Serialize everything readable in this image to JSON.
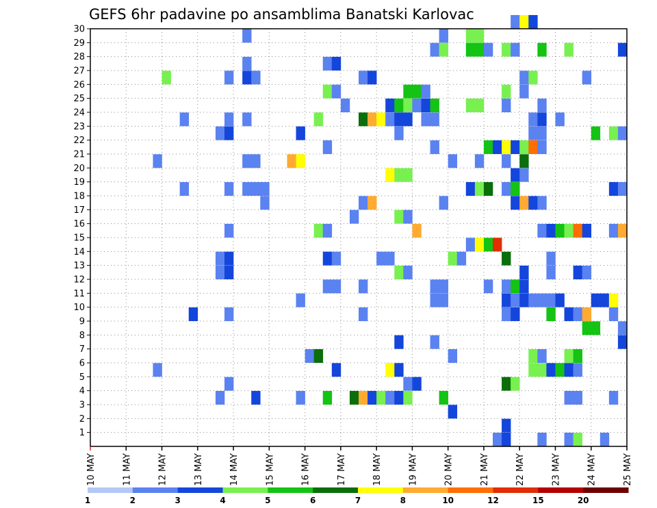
{
  "chart_data": {
    "type": "heatmap",
    "title": "GEFS 6hr padavine po ansamblima Banatski Karlovac",
    "x_tick_labels": [
      "10 MAY",
      "11 MAY",
      "12 MAY",
      "13 MAY",
      "14 MAY",
      "15 MAY",
      "16 MAY",
      "17 MAY",
      "18 MAY",
      "19 MAY",
      "20 MAY",
      "21 MAY",
      "22 MAY",
      "23 MAY",
      "24 MAY",
      "25 MAY"
    ],
    "y_tick_labels": [
      "1",
      "2",
      "3",
      "4",
      "5",
      "6",
      "7",
      "8",
      "9",
      "10",
      "11",
      "12",
      "13",
      "14",
      "15",
      "16",
      "17",
      "18",
      "19",
      "20",
      "21",
      "22",
      "23",
      "24",
      "25",
      "26",
      "27",
      "28",
      "29",
      "30"
    ],
    "xlim": [
      0,
      60
    ],
    "ylim": [
      0,
      30
    ],
    "grid": true,
    "legend": "colorbar-bottom",
    "colorbar": {
      "labels": [
        "1",
        "2",
        "3",
        "4",
        "5",
        "6",
        "7",
        "8",
        "10",
        "12",
        "15",
        "20"
      ],
      "colors": [
        "#b4c8f5",
        "#5a82f0",
        "#1446dc",
        "#78f050",
        "#14c314",
        "#0a6e0a",
        "#ffff00",
        "#ffaa32",
        "#ff6e00",
        "#e12d00",
        "#b40000",
        "#6e0000"
      ]
    },
    "cells": [
      [
        47,
        30,
        1
      ],
      [
        48,
        30,
        6
      ],
      [
        49,
        30,
        2
      ],
      [
        17,
        29,
        1
      ],
      [
        39,
        29,
        1
      ],
      [
        42,
        29,
        3
      ],
      [
        43,
        29,
        3
      ],
      [
        38,
        28,
        1
      ],
      [
        39,
        28,
        3
      ],
      [
        42,
        28,
        4
      ],
      [
        43,
        28,
        4
      ],
      [
        44,
        28,
        1
      ],
      [
        46,
        28,
        3
      ],
      [
        47,
        28,
        1
      ],
      [
        50,
        28,
        4
      ],
      [
        53,
        28,
        3
      ],
      [
        59,
        28,
        2
      ],
      [
        17,
        27,
        1
      ],
      [
        26,
        27,
        1
      ],
      [
        27,
        27,
        2
      ],
      [
        8,
        26,
        3
      ],
      [
        15,
        26,
        1
      ],
      [
        17,
        26,
        2
      ],
      [
        18,
        26,
        1
      ],
      [
        30,
        26,
        1
      ],
      [
        31,
        26,
        2
      ],
      [
        48,
        26,
        1
      ],
      [
        49,
        26,
        3
      ],
      [
        55,
        26,
        1
      ],
      [
        26,
        25,
        3
      ],
      [
        27,
        25,
        1
      ],
      [
        35,
        25,
        4
      ],
      [
        36,
        25,
        4
      ],
      [
        37,
        25,
        1
      ],
      [
        46,
        25,
        3
      ],
      [
        48,
        25,
        1
      ],
      [
        28,
        24,
        1
      ],
      [
        33,
        24,
        2
      ],
      [
        34,
        24,
        4
      ],
      [
        35,
        24,
        3
      ],
      [
        36,
        24,
        1
      ],
      [
        37,
        24,
        2
      ],
      [
        38,
        24,
        4
      ],
      [
        42,
        24,
        3
      ],
      [
        43,
        24,
        3
      ],
      [
        46,
        24,
        1
      ],
      [
        50,
        24,
        1
      ],
      [
        10,
        23,
        1
      ],
      [
        15,
        23,
        1
      ],
      [
        17,
        23,
        1
      ],
      [
        25,
        23,
        3
      ],
      [
        30,
        23,
        5
      ],
      [
        31,
        23,
        7
      ],
      [
        32,
        23,
        6
      ],
      [
        33,
        23,
        1
      ],
      [
        34,
        23,
        2
      ],
      [
        35,
        23,
        2
      ],
      [
        37,
        23,
        1
      ],
      [
        38,
        23,
        1
      ],
      [
        49,
        23,
        1
      ],
      [
        50,
        23,
        2
      ],
      [
        52,
        23,
        1
      ],
      [
        14,
        22,
        1
      ],
      [
        15,
        22,
        2
      ],
      [
        23,
        22,
        2
      ],
      [
        34,
        22,
        1
      ],
      [
        49,
        22,
        1
      ],
      [
        50,
        22,
        1
      ],
      [
        56,
        22,
        4
      ],
      [
        58,
        22,
        3
      ],
      [
        59,
        22,
        1
      ],
      [
        26,
        21,
        1
      ],
      [
        38,
        21,
        1
      ],
      [
        44,
        21,
        4
      ],
      [
        45,
        21,
        2
      ],
      [
        46,
        21,
        6
      ],
      [
        47,
        21,
        2
      ],
      [
        48,
        21,
        3
      ],
      [
        49,
        21,
        8
      ],
      [
        50,
        21,
        1
      ],
      [
        7,
        20,
        1
      ],
      [
        17,
        20,
        1
      ],
      [
        18,
        20,
        1
      ],
      [
        22,
        20,
        7
      ],
      [
        23,
        20,
        6
      ],
      [
        40,
        20,
        1
      ],
      [
        43,
        20,
        1
      ],
      [
        46,
        20,
        1
      ],
      [
        48,
        20,
        5
      ],
      [
        33,
        19,
        6
      ],
      [
        34,
        19,
        3
      ],
      [
        35,
        19,
        3
      ],
      [
        47,
        19,
        2
      ],
      [
        48,
        19,
        1
      ],
      [
        10,
        18,
        1
      ],
      [
        15,
        18,
        1
      ],
      [
        17,
        18,
        1
      ],
      [
        18,
        18,
        1
      ],
      [
        19,
        18,
        1
      ],
      [
        42,
        18,
        2
      ],
      [
        43,
        18,
        3
      ],
      [
        44,
        18,
        5
      ],
      [
        46,
        18,
        1
      ],
      [
        47,
        18,
        4
      ],
      [
        58,
        18,
        2
      ],
      [
        59,
        18,
        1
      ],
      [
        19,
        17,
        1
      ],
      [
        30,
        17,
        1
      ],
      [
        31,
        17,
        7
      ],
      [
        39,
        17,
        1
      ],
      [
        47,
        17,
        2
      ],
      [
        48,
        17,
        7
      ],
      [
        49,
        17,
        2
      ],
      [
        50,
        17,
        1
      ],
      [
        29,
        16,
        1
      ],
      [
        34,
        16,
        3
      ],
      [
        35,
        16,
        1
      ],
      [
        15,
        15,
        1
      ],
      [
        25,
        15,
        3
      ],
      [
        26,
        15,
        1
      ],
      [
        36,
        15,
        7
      ],
      [
        50,
        15,
        1
      ],
      [
        51,
        15,
        2
      ],
      [
        52,
        15,
        4
      ],
      [
        53,
        15,
        3
      ],
      [
        54,
        15,
        8
      ],
      [
        55,
        15,
        2
      ],
      [
        58,
        15,
        1
      ],
      [
        59,
        15,
        7
      ],
      [
        42,
        14,
        1
      ],
      [
        43,
        14,
        6
      ],
      [
        44,
        14,
        4
      ],
      [
        45,
        14,
        9
      ],
      [
        14,
        13,
        1
      ],
      [
        15,
        13,
        2
      ],
      [
        26,
        13,
        2
      ],
      [
        27,
        13,
        1
      ],
      [
        32,
        13,
        1
      ],
      [
        33,
        13,
        1
      ],
      [
        40,
        13,
        3
      ],
      [
        41,
        13,
        1
      ],
      [
        46,
        13,
        5
      ],
      [
        51,
        13,
        1
      ],
      [
        14,
        12,
        1
      ],
      [
        15,
        12,
        2
      ],
      [
        34,
        12,
        3
      ],
      [
        35,
        12,
        1
      ],
      [
        48,
        12,
        2
      ],
      [
        51,
        12,
        1
      ],
      [
        54,
        12,
        2
      ],
      [
        55,
        12,
        1
      ],
      [
        26,
        11,
        1
      ],
      [
        27,
        11,
        1
      ],
      [
        30,
        11,
        1
      ],
      [
        38,
        11,
        1
      ],
      [
        39,
        11,
        1
      ],
      [
        44,
        11,
        1
      ],
      [
        46,
        11,
        1
      ],
      [
        47,
        11,
        4
      ],
      [
        48,
        11,
        2
      ],
      [
        23,
        10,
        1
      ],
      [
        38,
        10,
        1
      ],
      [
        39,
        10,
        1
      ],
      [
        46,
        10,
        2
      ],
      [
        47,
        10,
        1
      ],
      [
        48,
        10,
        2
      ],
      [
        49,
        10,
        1
      ],
      [
        50,
        10,
        1
      ],
      [
        51,
        10,
        1
      ],
      [
        52,
        10,
        2
      ],
      [
        56,
        10,
        2
      ],
      [
        57,
        10,
        2
      ],
      [
        58,
        10,
        6
      ],
      [
        11,
        9,
        2
      ],
      [
        15,
        9,
        1
      ],
      [
        30,
        9,
        1
      ],
      [
        46,
        9,
        1
      ],
      [
        47,
        9,
        2
      ],
      [
        51,
        9,
        4
      ],
      [
        53,
        9,
        2
      ],
      [
        54,
        9,
        1
      ],
      [
        55,
        9,
        7
      ],
      [
        58,
        9,
        1
      ],
      [
        55,
        8,
        4
      ],
      [
        56,
        8,
        4
      ],
      [
        59,
        8,
        1
      ],
      [
        34,
        7,
        2
      ],
      [
        38,
        7,
        1
      ],
      [
        59,
        7,
        2
      ],
      [
        24,
        6,
        1
      ],
      [
        25,
        6,
        5
      ],
      [
        40,
        6,
        1
      ],
      [
        49,
        6,
        3
      ],
      [
        50,
        6,
        1
      ],
      [
        53,
        6,
        3
      ],
      [
        54,
        6,
        4
      ],
      [
        7,
        5,
        1
      ],
      [
        27,
        5,
        2
      ],
      [
        33,
        5,
        6
      ],
      [
        34,
        5,
        2
      ],
      [
        49,
        5,
        3
      ],
      [
        50,
        5,
        3
      ],
      [
        51,
        5,
        2
      ],
      [
        52,
        5,
        4
      ],
      [
        53,
        5,
        2
      ],
      [
        54,
        5,
        1
      ],
      [
        15,
        4,
        1
      ],
      [
        35,
        4,
        1
      ],
      [
        36,
        4,
        2
      ],
      [
        46,
        4,
        5
      ],
      [
        47,
        4,
        3
      ],
      [
        14,
        3,
        1
      ],
      [
        18,
        3,
        2
      ],
      [
        23,
        3,
        1
      ],
      [
        26,
        3,
        4
      ],
      [
        29,
        3,
        5
      ],
      [
        30,
        3,
        7
      ],
      [
        31,
        3,
        2
      ],
      [
        32,
        3,
        3
      ],
      [
        33,
        3,
        1
      ],
      [
        34,
        3,
        2
      ],
      [
        35,
        3,
        3
      ],
      [
        39,
        3,
        4
      ],
      [
        53,
        3,
        1
      ],
      [
        54,
        3,
        1
      ],
      [
        58,
        3,
        1
      ],
      [
        40,
        2,
        2
      ],
      [
        46,
        1,
        2
      ],
      [
        45,
        0,
        1
      ],
      [
        46,
        0,
        2
      ],
      [
        50,
        0,
        1
      ],
      [
        53,
        0,
        1
      ],
      [
        54,
        0,
        3
      ],
      [
        57,
        0,
        1
      ]
    ]
  }
}
